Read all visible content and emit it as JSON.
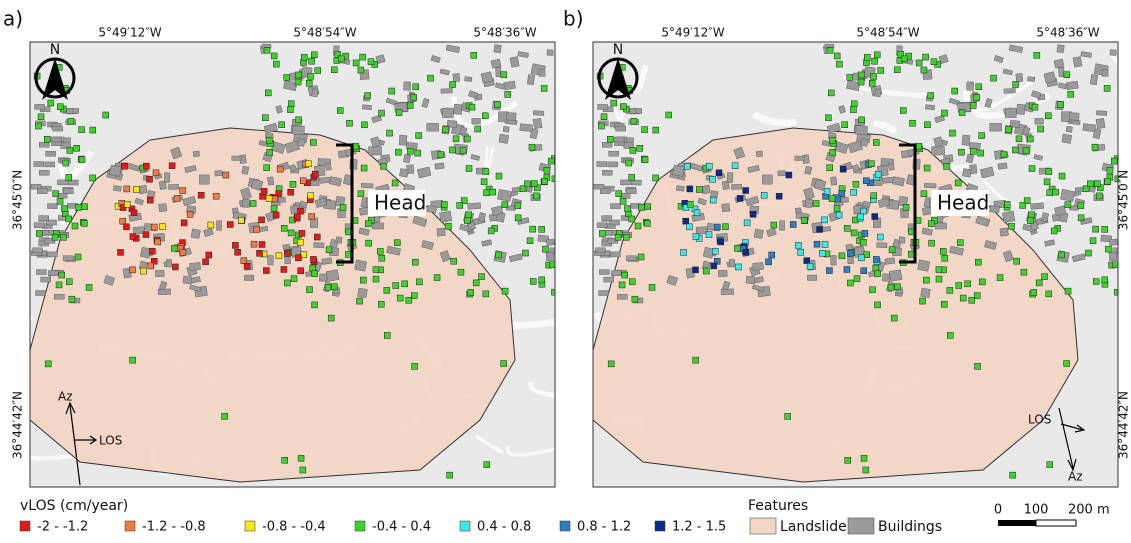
{
  "panels": [
    {
      "label": "a)",
      "lon_ticks": [
        "5°49′12″W",
        "5°48′54″W",
        "5°48′36″W"
      ],
      "lat_ticks": [
        "36°45′0″N",
        "36°44′42″N"
      ],
      "north": "N",
      "head": "Head",
      "az": "Az",
      "los": "LOS"
    },
    {
      "label": "b)",
      "lon_ticks": [
        "5°49′12″W",
        "5°48′54″W",
        "5°48′36″W"
      ],
      "lat_ticks": [
        "36°45′0″N",
        "36°44′42″N"
      ],
      "north": "N",
      "head": "Head",
      "az": "Az",
      "los": "LOS"
    }
  ],
  "legend": {
    "title": "vLOS (cm/year)",
    "classes": [
      {
        "label": "-2 - -1.2",
        "color": "#e31a1c"
      },
      {
        "label": "-1.2 - -0.8",
        "color": "#f07b45"
      },
      {
        "label": "-0.8 - -0.4",
        "color": "#f5e616"
      },
      {
        "label": "-0.4 - 0.4",
        "color": "#3fd12c"
      },
      {
        "label": "0.4 - 0.8",
        "color": "#3ee6e6"
      },
      {
        "label": "0.8 - 1.2",
        "color": "#2f7ec4"
      },
      {
        "label": "1.2 - 1.5",
        "color": "#0a2a8c"
      }
    ]
  },
  "features": {
    "title": "Features",
    "items": [
      {
        "label": "Landslide",
        "color": "#f4d6c4"
      },
      {
        "label": "Buildings",
        "color": "#9a9a9a"
      }
    ]
  },
  "scale_bar": {
    "labels": [
      "0",
      "100",
      "200 m"
    ]
  }
}
